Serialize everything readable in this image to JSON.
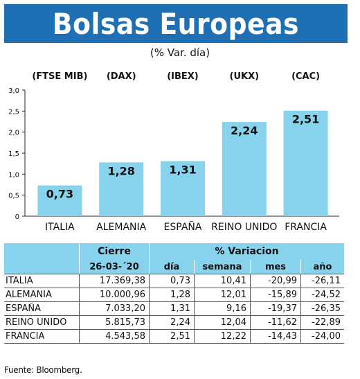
{
  "header": {
    "title": "Bolsas Europeas",
    "subtitle": "(% Var. día)"
  },
  "colors": {
    "banner": "#1f6fb5",
    "bar": "#87d3ee",
    "table_header": "#87d3ee"
  },
  "chart_data": {
    "type": "bar",
    "title": "Bolsas Europeas",
    "subtitle": "(% Var. día)",
    "categories": [
      "ITALIA",
      "ALEMANIA",
      "ESPAÑA",
      "REINO UNIDO",
      "FRANCIA"
    ],
    "index_codes": [
      "(FTSE MIB)",
      "(DAX)",
      "(IBEX)",
      "(UKX)",
      "(CAC)"
    ],
    "values": [
      0.73,
      1.28,
      1.31,
      2.24,
      2.51
    ],
    "value_labels": [
      "0,73",
      "1,28",
      "1,31",
      "2,24",
      "2,51"
    ],
    "ylim": [
      0,
      3.0
    ],
    "yticks": [
      0,
      0.5,
      1.0,
      1.5,
      2.0,
      2.5,
      3.0
    ],
    "ytick_labels": [
      "0",
      "0,5",
      "1,0",
      "1,5",
      "2,0",
      "2,5",
      "3,0"
    ],
    "grid": false,
    "xlabel": "",
    "ylabel": ""
  },
  "table": {
    "group_headers": [
      "Cierre",
      "% Variacion"
    ],
    "date_header": "26-03-´20",
    "columns": [
      "día",
      "semana",
      "mes",
      "año"
    ],
    "rows": [
      {
        "country": "ITALIA",
        "cierre": "17.369,38",
        "dia": "0,73",
        "semana": "10,41",
        "mes": "-20,99",
        "ano": "-26,11"
      },
      {
        "country": "ALEMANIA",
        "cierre": "10.000,96",
        "dia": "1,28",
        "semana": "12,01",
        "mes": "-15,89",
        "ano": "-24,52"
      },
      {
        "country": "ESPAÑA",
        "cierre": "7.033,20",
        "dia": "1,31",
        "semana": "9,16",
        "mes": "-19,37",
        "ano": "-26,35"
      },
      {
        "country": "REINO UNIDO",
        "cierre": "5.815,73",
        "dia": "2,24",
        "semana": "12,04",
        "mes": "-11,62",
        "ano": "-22,89"
      },
      {
        "country": "FRANCIA",
        "cierre": "4.543,58",
        "dia": "2,51",
        "semana": "12,22",
        "mes": "-14,43",
        "ano": "-24,00"
      }
    ]
  },
  "footer": {
    "source": "Fuente: Bloomberg."
  }
}
